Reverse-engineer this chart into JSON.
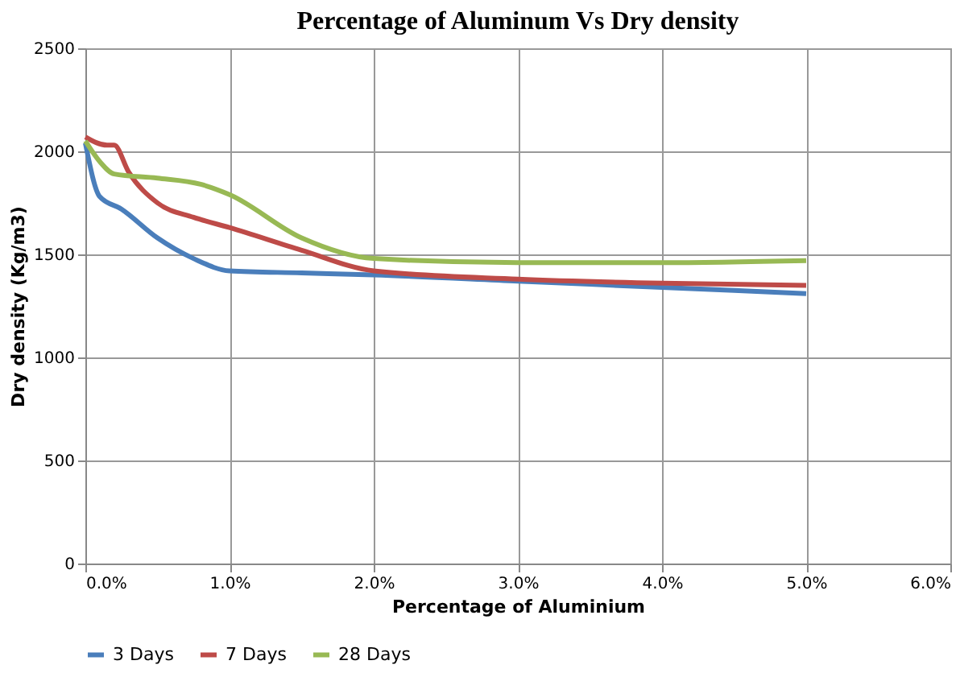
{
  "chart_data": {
    "type": "line",
    "title": "Percentage of Aluminum Vs Dry density",
    "xlabel": "Percentage of Aluminium",
    "ylabel": "Dry density (Kg/m3)",
    "xlim": [
      0,
      6
    ],
    "xticks": [
      {
        "value": 0,
        "label": "0.0%"
      },
      {
        "value": 1,
        "label": "1.0%"
      },
      {
        "value": 2,
        "label": "2.0%"
      },
      {
        "value": 3,
        "label": "3.0%"
      },
      {
        "value": 4,
        "label": "4.0%"
      },
      {
        "value": 5,
        "label": "5.0%"
      },
      {
        "value": 6,
        "label": "6.0%"
      }
    ],
    "ylim": [
      0,
      2500
    ],
    "yticks": [
      0,
      500,
      1000,
      1500,
      2000,
      2500
    ],
    "grid": true,
    "legend": "bottom",
    "marker": "none",
    "line_style": "solid",
    "series": [
      {
        "name": "3 Days",
        "color": "#4a7ebb",
        "x": [
          0,
          0.1,
          0.25,
          0.5,
          0.75,
          1.0,
          1.5,
          2,
          3,
          4,
          5
        ],
        "values": [
          2040,
          1780,
          1720,
          1580,
          1480,
          1420,
          1410,
          1400,
          1370,
          1340,
          1310
        ]
      },
      {
        "name": "7 Days",
        "color": "#be4b48",
        "x": [
          0,
          0.15,
          0.2,
          0.3,
          0.5,
          0.75,
          1.0,
          1.5,
          2,
          3,
          4,
          5
        ],
        "values": [
          2070,
          2030,
          2030,
          1900,
          1750,
          1680,
          1630,
          1520,
          1420,
          1380,
          1360,
          1350
        ]
      },
      {
        "name": "28 Days",
        "color": "#98b954",
        "x": [
          0,
          0.1,
          0.2,
          0.5,
          0.8,
          1.0,
          1.5,
          2,
          3,
          4,
          5
        ],
        "values": [
          2050,
          1950,
          1890,
          1870,
          1840,
          1790,
          1580,
          1480,
          1460,
          1460,
          1470
        ]
      }
    ]
  }
}
